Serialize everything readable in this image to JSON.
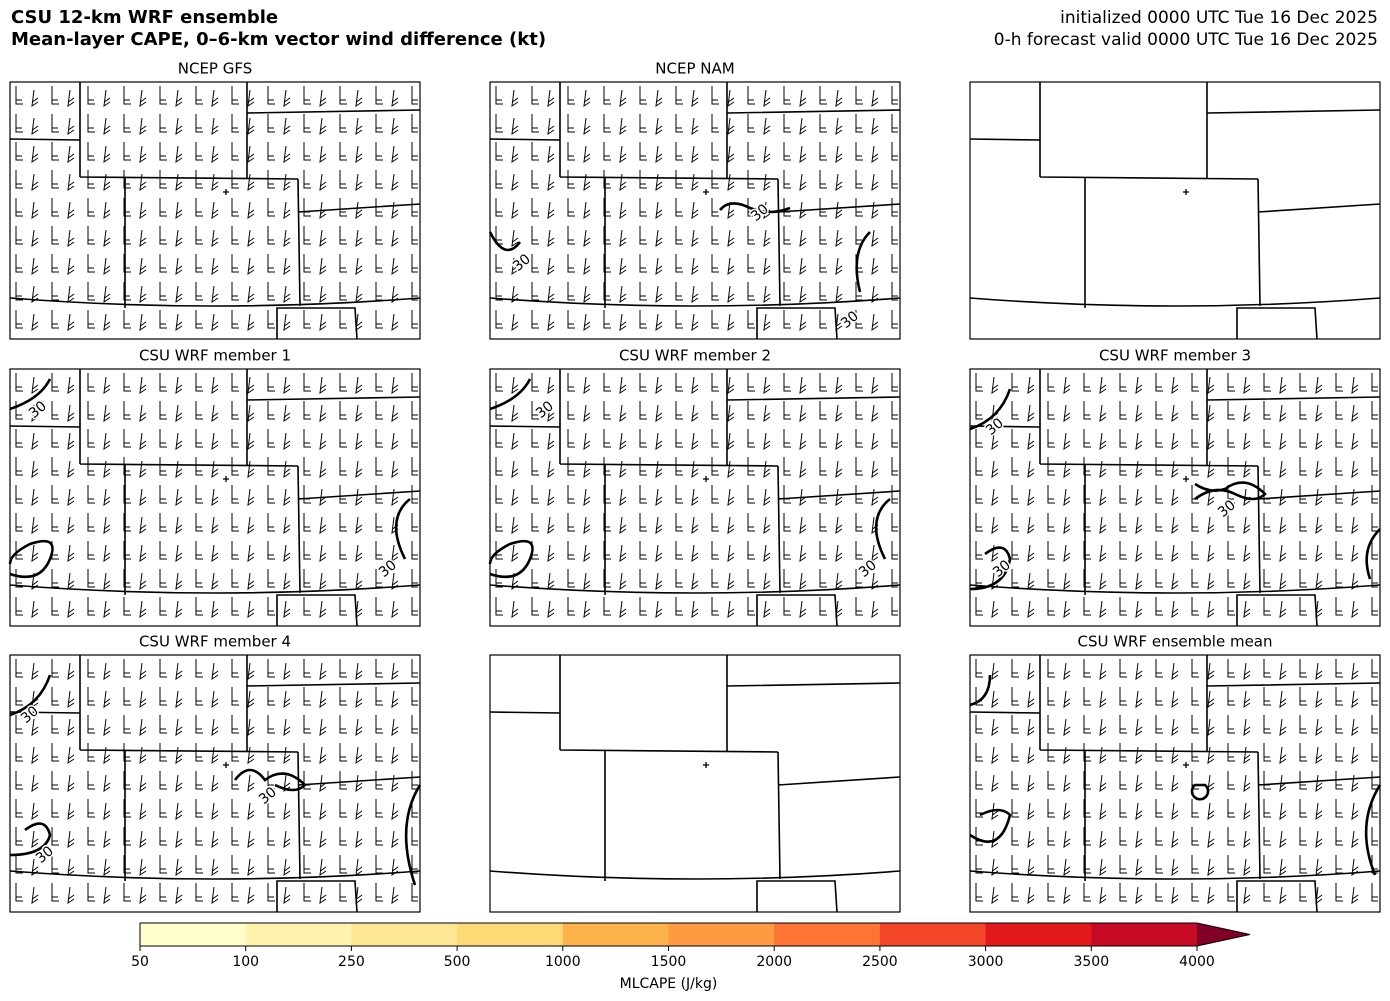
{
  "header": {
    "title": "CSU 12-km WRF ensemble",
    "subtitle": "Mean-layer CAPE, 0–6-km vector wind difference (kt)",
    "init": "initialized 0000 UTC Tue 16 Dec 2025",
    "valid": "0-h forecast valid 0000 UTC Tue 16 Dec 2025"
  },
  "panels": [
    {
      "title": "NCEP GFS",
      "barbs": true
    },
    {
      "title": "NCEP NAM",
      "barbs": true,
      "contour_labels": [
        "30",
        "30",
        "30"
      ]
    },
    {
      "barbs": false
    },
    {
      "title": "CSU WRF member 1",
      "barbs": true,
      "contour_labels": [
        "30",
        "30"
      ]
    },
    {
      "title": "CSU WRF member 2",
      "barbs": true,
      "contour_labels": [
        "30",
        "30"
      ]
    },
    {
      "title": "CSU WRF member 3",
      "barbs": true,
      "contour_labels": [
        "30",
        "30",
        "30"
      ]
    },
    {
      "title": "CSU WRF member 4",
      "barbs": true,
      "contour_labels": [
        "30",
        "30",
        "30"
      ]
    },
    {
      "barbs": false
    },
    {
      "title": "CSU WRF ensemble mean",
      "barbs": true
    }
  ],
  "colorbar": {
    "label": "MLCAPE (J/kg)",
    "boundaries": [
      50,
      100,
      250,
      500,
      1000,
      1500,
      2000,
      2500,
      3000,
      3500,
      4000
    ],
    "colors": [
      "#ffffcc",
      "#fff3b0",
      "#fee794",
      "#fed976",
      "#feb24c",
      "#fd9a42",
      "#fd7434",
      "#f4472a",
      "#e31a1c",
      "#c70b24",
      "#9a0026"
    ],
    "extend_color": "#800026"
  }
}
